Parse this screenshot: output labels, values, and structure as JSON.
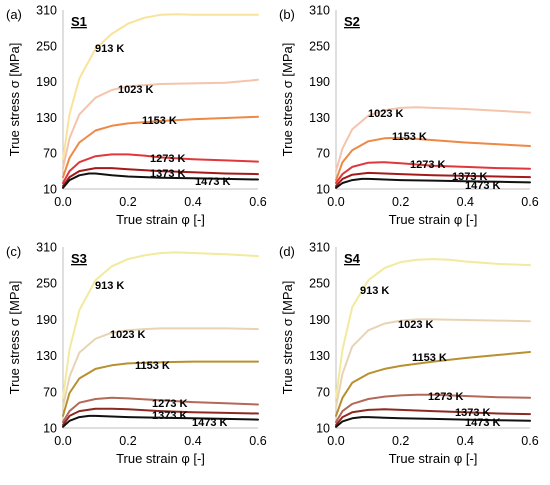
{
  "chart_data": [
    {
      "type": "line",
      "panel_letter": "(a)",
      "panel_tag": "S1",
      "xlabel": "True strain φ [-]",
      "ylabel": "True stress σ [MPa]",
      "xlim": [
        0.0,
        0.6
      ],
      "ylim": [
        10,
        310
      ],
      "xticks": [
        "0.0",
        "0.2",
        "0.4",
        "0.6"
      ],
      "yticks": [
        "10",
        "70",
        "130",
        "190",
        "250",
        "310"
      ],
      "grid": false,
      "series": [
        {
          "name": "913 K",
          "color": "#f9e39a",
          "x": [
            0,
            0.02,
            0.05,
            0.1,
            0.15,
            0.2,
            0.25,
            0.3,
            0.35,
            0.4,
            0.5,
            0.6
          ],
          "y": [
            60,
            135,
            195,
            245,
            270,
            287,
            297,
            302,
            303,
            302,
            302,
            302
          ]
        },
        {
          "name": "1023 K",
          "color": "#f4c4ad",
          "x": [
            0,
            0.02,
            0.05,
            0.1,
            0.15,
            0.2,
            0.3,
            0.4,
            0.5,
            0.6
          ],
          "y": [
            45,
            95,
            135,
            163,
            176,
            182,
            186,
            187,
            188,
            193
          ]
        },
        {
          "name": "1153 K",
          "color": "#ee8845",
          "x": [
            0,
            0.02,
            0.05,
            0.1,
            0.15,
            0.2,
            0.3,
            0.4,
            0.5,
            0.6
          ],
          "y": [
            30,
            62,
            88,
            108,
            116,
            120,
            124,
            127,
            129,
            131
          ]
        },
        {
          "name": "1273 K",
          "color": "#e0373a",
          "x": [
            0,
            0.02,
            0.05,
            0.1,
            0.15,
            0.2,
            0.25,
            0.3,
            0.4,
            0.5,
            0.6
          ],
          "y": [
            20,
            40,
            55,
            65,
            68,
            68,
            66,
            63,
            60,
            58,
            56
          ]
        },
        {
          "name": "1373 K",
          "color": "#a31a1a",
          "x": [
            0,
            0.02,
            0.05,
            0.1,
            0.15,
            0.2,
            0.3,
            0.4,
            0.5,
            0.6
          ],
          "y": [
            15,
            30,
            40,
            45,
            45,
            43,
            40,
            38,
            36,
            35
          ]
        },
        {
          "name": "1473 K",
          "color": "#111111",
          "x": [
            0,
            0.02,
            0.05,
            0.08,
            0.1,
            0.15,
            0.2,
            0.3,
            0.4,
            0.5,
            0.6
          ],
          "y": [
            12,
            25,
            33,
            36,
            36,
            33,
            31,
            29,
            28,
            27,
            26
          ]
        }
      ]
    },
    {
      "type": "line",
      "panel_letter": "(b)",
      "panel_tag": "S2",
      "xlabel": "True strain φ [-]",
      "ylabel": "True stress σ [MPa]",
      "xlim": [
        0.0,
        0.6
      ],
      "ylim": [
        10,
        310
      ],
      "xticks": [
        "0.0",
        "0.2",
        "0.4",
        "0.6"
      ],
      "yticks": [
        "10",
        "70",
        "130",
        "190",
        "250",
        "310"
      ],
      "grid": false,
      "series": [
        {
          "name": "1023 K",
          "color": "#f4c4ad",
          "x": [
            0,
            0.02,
            0.05,
            0.1,
            0.15,
            0.2,
            0.25,
            0.3,
            0.4,
            0.5,
            0.6
          ],
          "y": [
            40,
            78,
            110,
            133,
            142,
            146,
            147,
            146,
            144,
            141,
            138
          ]
        },
        {
          "name": "1153 K",
          "color": "#ee8845",
          "x": [
            0,
            0.02,
            0.05,
            0.1,
            0.15,
            0.2,
            0.3,
            0.4,
            0.5,
            0.6
          ],
          "y": [
            25,
            55,
            75,
            90,
            95,
            96,
            92,
            88,
            85,
            82
          ]
        },
        {
          "name": "1273 K",
          "color": "#e0373a",
          "x": [
            0,
            0.02,
            0.05,
            0.1,
            0.15,
            0.2,
            0.3,
            0.4,
            0.5,
            0.6
          ],
          "y": [
            20,
            35,
            47,
            54,
            55,
            53,
            49,
            47,
            45,
            44
          ]
        },
        {
          "name": "1373 K",
          "color": "#a31a1a",
          "x": [
            0,
            0.02,
            0.05,
            0.1,
            0.15,
            0.2,
            0.3,
            0.4,
            0.5,
            0.6
          ],
          "y": [
            15,
            27,
            34,
            37,
            36,
            35,
            33,
            32,
            31,
            30
          ]
        },
        {
          "name": "1473 K",
          "color": "#111111",
          "x": [
            0,
            0.02,
            0.05,
            0.08,
            0.1,
            0.15,
            0.2,
            0.3,
            0.4,
            0.5,
            0.6
          ],
          "y": [
            12,
            20,
            25,
            27,
            27,
            26,
            25,
            24,
            23,
            22,
            21
          ]
        }
      ]
    },
    {
      "type": "line",
      "panel_letter": "(c)",
      "panel_tag": "S3",
      "xlabel": "True strain φ [-]",
      "ylabel": "True stress σ [MPa]",
      "xlim": [
        0.0,
        0.6
      ],
      "ylim": [
        10,
        310
      ],
      "xticks": [
        "0.0",
        "0.2",
        "0.4",
        "0.6"
      ],
      "yticks": [
        "10",
        "70",
        "130",
        "190",
        "250",
        "310"
      ],
      "grid": false,
      "series": [
        {
          "name": "913 K",
          "color": "#f2ea9c",
          "x": [
            0,
            0.02,
            0.05,
            0.1,
            0.15,
            0.2,
            0.25,
            0.3,
            0.35,
            0.4,
            0.5,
            0.6
          ],
          "y": [
            60,
            140,
            205,
            255,
            278,
            290,
            296,
            300,
            301,
            300,
            298,
            295
          ]
        },
        {
          "name": "1023 K",
          "color": "#e8d4b4",
          "x": [
            0,
            0.02,
            0.05,
            0.1,
            0.15,
            0.2,
            0.25,
            0.3,
            0.4,
            0.5,
            0.6
          ],
          "y": [
            45,
            95,
            135,
            158,
            168,
            172,
            174,
            175,
            175,
            175,
            174
          ]
        },
        {
          "name": "1153 K",
          "color": "#b8902f",
          "x": [
            0,
            0.02,
            0.05,
            0.1,
            0.15,
            0.2,
            0.3,
            0.4,
            0.5,
            0.6
          ],
          "y": [
            30,
            68,
            92,
            108,
            114,
            117,
            119,
            120,
            120,
            120
          ]
        },
        {
          "name": "1273 K",
          "color": "#b4685a",
          "x": [
            0,
            0.02,
            0.05,
            0.1,
            0.15,
            0.2,
            0.3,
            0.4,
            0.5,
            0.6
          ],
          "y": [
            20,
            38,
            52,
            58,
            60,
            59,
            56,
            53,
            51,
            49
          ]
        },
        {
          "name": "1373 K",
          "color": "#8c2a22",
          "x": [
            0,
            0.02,
            0.05,
            0.1,
            0.15,
            0.2,
            0.3,
            0.4,
            0.5,
            0.6
          ],
          "y": [
            15,
            30,
            38,
            42,
            42,
            41,
            38,
            36,
            35,
            34
          ]
        },
        {
          "name": "1473 K",
          "color": "#111111",
          "x": [
            0,
            0.02,
            0.05,
            0.08,
            0.1,
            0.15,
            0.2,
            0.3,
            0.4,
            0.5,
            0.6
          ],
          "y": [
            12,
            22,
            28,
            30,
            30,
            29,
            28,
            27,
            26,
            25,
            24
          ]
        }
      ]
    },
    {
      "type": "line",
      "panel_letter": "(d)",
      "panel_tag": "S4",
      "xlabel": "True strain φ [-]",
      "ylabel": "True stress σ [MPa]",
      "xlim": [
        0.0,
        0.6
      ],
      "ylim": [
        10,
        310
      ],
      "xticks": [
        "0.0",
        "0.2",
        "0.4",
        "0.6"
      ],
      "yticks": [
        "10",
        "70",
        "130",
        "190",
        "250",
        "310"
      ],
      "grid": false,
      "series": [
        {
          "name": "913 K",
          "color": "#f2ea9c",
          "x": [
            0,
            0.02,
            0.05,
            0.1,
            0.15,
            0.2,
            0.25,
            0.3,
            0.35,
            0.4,
            0.5,
            0.6
          ],
          "y": [
            60,
            140,
            210,
            255,
            275,
            285,
            289,
            290,
            289,
            286,
            282,
            280
          ]
        },
        {
          "name": "1023 K",
          "color": "#e8d4b4",
          "x": [
            0,
            0.02,
            0.05,
            0.1,
            0.15,
            0.2,
            0.25,
            0.3,
            0.4,
            0.5,
            0.6
          ],
          "y": [
            45,
            100,
            145,
            172,
            183,
            188,
            190,
            190,
            189,
            188,
            187
          ]
        },
        {
          "name": "1153 K",
          "color": "#b8902f",
          "x": [
            0,
            0.02,
            0.05,
            0.1,
            0.15,
            0.2,
            0.3,
            0.4,
            0.5,
            0.6
          ],
          "y": [
            30,
            60,
            85,
            100,
            108,
            113,
            120,
            126,
            131,
            136
          ]
        },
        {
          "name": "1273 K",
          "color": "#b4685a",
          "x": [
            0,
            0.02,
            0.05,
            0.1,
            0.15,
            0.2,
            0.25,
            0.3,
            0.4,
            0.5,
            0.6
          ],
          "y": [
            20,
            38,
            50,
            58,
            62,
            64,
            65,
            65,
            63,
            61,
            60
          ]
        },
        {
          "name": "1373 K",
          "color": "#8c2a22",
          "x": [
            0,
            0.02,
            0.05,
            0.1,
            0.15,
            0.2,
            0.3,
            0.4,
            0.5,
            0.6
          ],
          "y": [
            15,
            28,
            36,
            40,
            41,
            40,
            38,
            36,
            34,
            33
          ]
        },
        {
          "name": "1473 K",
          "color": "#111111",
          "x": [
            0,
            0.02,
            0.05,
            0.08,
            0.1,
            0.15,
            0.2,
            0.3,
            0.4,
            0.5,
            0.6
          ],
          "y": [
            12,
            21,
            26,
            28,
            28,
            27,
            26,
            25,
            24,
            23,
            22
          ]
        }
      ]
    }
  ]
}
